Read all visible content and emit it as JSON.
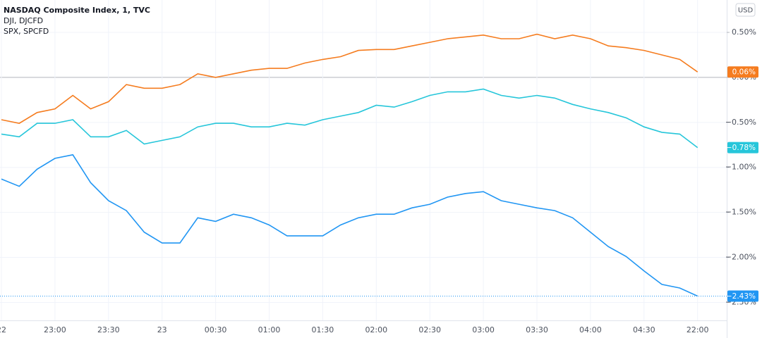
{
  "chart_data": {
    "type": "line",
    "currency": "USD",
    "categories": [
      "22",
      null,
      null,
      "23:00",
      null,
      null,
      "23:30",
      null,
      null,
      "23",
      null,
      null,
      "00:30",
      null,
      null,
      "01:00",
      null,
      null,
      "01:30",
      null,
      null,
      "02:00",
      null,
      null,
      "02:30",
      null,
      null,
      "03:00",
      null,
      null,
      "03:30",
      null,
      null,
      "04:00",
      null,
      null,
      "04:30",
      null,
      null,
      "22:00"
    ],
    "series": [
      {
        "name": "NASDAQ Composite Index, 1, TVC",
        "color": "#2196f3",
        "last_label": "−2.43%",
        "values": [
          -1.13,
          -1.21,
          -1.02,
          -0.9,
          -0.86,
          -1.17,
          -1.37,
          -1.48,
          -1.72,
          -1.84,
          -1.84,
          -1.56,
          -1.6,
          -1.52,
          -1.56,
          -1.64,
          -1.76,
          -1.76,
          -1.76,
          -1.64,
          -1.56,
          -1.52,
          -1.52,
          -1.45,
          -1.41,
          -1.33,
          -1.29,
          -1.27,
          -1.37,
          -1.41,
          -1.45,
          -1.48,
          -1.56,
          -1.72,
          -1.88,
          -1.99,
          -2.15,
          -2.3,
          -2.34,
          -2.43
        ]
      },
      {
        "name": "DJI, DJCFD",
        "color": "#f57c1f",
        "last_label": "0.06%",
        "values": [
          -0.47,
          -0.51,
          -0.39,
          -0.35,
          -0.2,
          -0.35,
          -0.27,
          -0.08,
          -0.12,
          -0.12,
          -0.08,
          0.04,
          0,
          0.04,
          0.08,
          0.1,
          0.1,
          0.16,
          0.2,
          0.23,
          0.3,
          0.31,
          0.31,
          0.35,
          0.39,
          0.43,
          0.45,
          0.47,
          0.43,
          0.43,
          0.48,
          0.43,
          0.47,
          0.43,
          0.35,
          0.33,
          0.3,
          0.25,
          0.2,
          0.06
        ]
      },
      {
        "name": "SPX, SPCFD",
        "color": "#26c6da",
        "last_label": "−0.78%",
        "values": [
          -0.63,
          -0.66,
          -0.51,
          -0.51,
          -0.47,
          -0.66,
          -0.66,
          -0.59,
          -0.74,
          -0.7,
          -0.66,
          -0.55,
          -0.51,
          -0.51,
          -0.55,
          -0.55,
          -0.51,
          -0.53,
          -0.47,
          -0.43,
          -0.39,
          -0.31,
          -0.33,
          -0.27,
          -0.2,
          -0.16,
          -0.16,
          -0.13,
          -0.2,
          -0.23,
          -0.2,
          -0.23,
          -0.3,
          -0.35,
          -0.39,
          -0.45,
          -0.55,
          -0.61,
          -0.63,
          -0.78
        ]
      }
    ],
    "ylim": [
      -2.7,
      0.86
    ],
    "yticks": [
      {
        "value": 0.5,
        "label": "0.50%"
      },
      {
        "value": 0,
        "label": "0.00%"
      },
      {
        "value": -0.5,
        "label": "−0.50%"
      },
      {
        "value": -1,
        "label": "−1.00%"
      },
      {
        "value": -1.5,
        "label": "−1.50%"
      },
      {
        "value": -2,
        "label": "−2.00%"
      },
      {
        "value": -2.5,
        "label": "−2.50%"
      }
    ],
    "grid": true
  }
}
